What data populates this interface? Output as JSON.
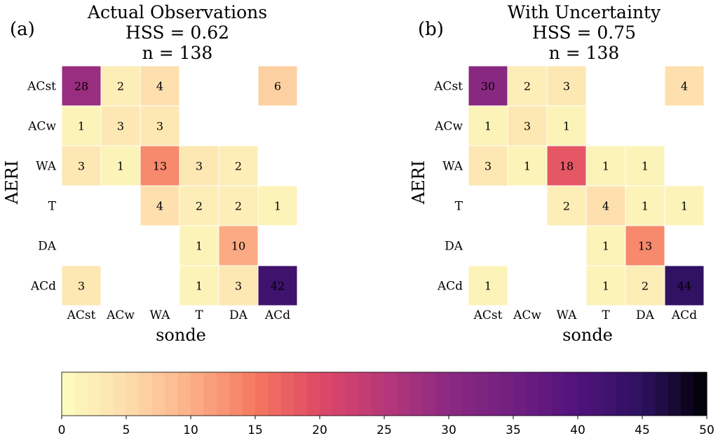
{
  "chart_data": [
    {
      "type": "heatmap",
      "panel_label": "(a)",
      "title_lines": [
        "Actual Observations",
        "HSS = 0.62",
        "n = 138"
      ],
      "xlabel": "sonde",
      "ylabel": "AERI",
      "x_categories": [
        "ACst",
        "ACw",
        "WA",
        "T",
        "DA",
        "ACd"
      ],
      "y_categories": [
        "ACst",
        "ACw",
        "WA",
        "T",
        "DA",
        "ACd"
      ],
      "values": [
        [
          28,
          2,
          4,
          null,
          null,
          6
        ],
        [
          1,
          3,
          3,
          null,
          null,
          null
        ],
        [
          3,
          1,
          13,
          3,
          2,
          null
        ],
        [
          null,
          null,
          4,
          2,
          2,
          1
        ],
        [
          null,
          null,
          null,
          1,
          10,
          null
        ],
        [
          3,
          null,
          null,
          1,
          3,
          42
        ]
      ]
    },
    {
      "type": "heatmap",
      "panel_label": "(b)",
      "title_lines": [
        "With Uncertainty",
        "HSS = 0.75",
        "n = 138"
      ],
      "xlabel": "sonde",
      "ylabel": "AERI",
      "x_categories": [
        "ACst",
        "ACw",
        "WA",
        "T",
        "DA",
        "ACd"
      ],
      "y_categories": [
        "ACst",
        "ACw",
        "WA",
        "T",
        "DA",
        "ACd"
      ],
      "values": [
        [
          30,
          2,
          3,
          null,
          null,
          4
        ],
        [
          1,
          3,
          1,
          null,
          null,
          null
        ],
        [
          3,
          1,
          18,
          1,
          1,
          null
        ],
        [
          null,
          null,
          2,
          4,
          1,
          1
        ],
        [
          null,
          null,
          null,
          1,
          13,
          null
        ],
        [
          1,
          null,
          null,
          1,
          2,
          44
        ]
      ]
    }
  ],
  "colorbar": {
    "colormap": "magma_r",
    "vmin": 0,
    "vmax": 50,
    "ticks": [
      "0",
      "5",
      "10",
      "15",
      "20",
      "25",
      "30",
      "35",
      "40",
      "45",
      "50"
    ],
    "levels": 50
  },
  "colors": {
    "text_dark": "#222222",
    "text_light": "#ffffff",
    "cell_border": "#ffffff"
  }
}
